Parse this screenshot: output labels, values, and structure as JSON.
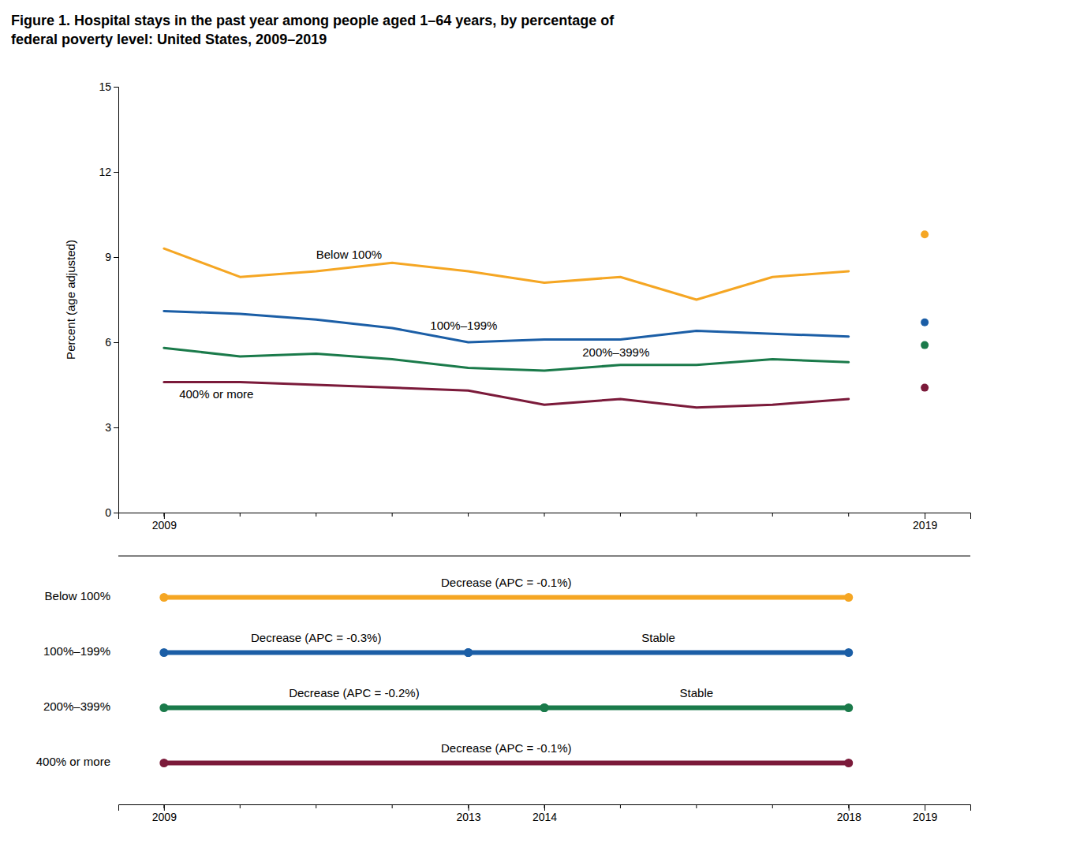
{
  "chart_data": [
    {
      "type": "line",
      "title": "Figure 1. Hospital stays in the past year among people aged 1–64 years, by percentage of",
      "subtitle": "federal poverty level: United States, 2009–2019",
      "ylabel": "Percent (age adjusted)",
      "x": [
        2009,
        2010,
        2011,
        2012,
        2013,
        2014,
        2015,
        2016,
        2017,
        2018
      ],
      "series": [
        {
          "name": "Below 100%",
          "type": "line",
          "color": "#F5A623",
          "values": [
            9.3,
            8.3,
            8.5,
            8.8,
            8.5,
            8.1,
            8.3,
            7.5,
            8.3,
            8.5
          ]
        },
        {
          "name": "100%–199%",
          "type": "line",
          "color": "#1B5EA6",
          "values": [
            7.1,
            7.0,
            6.8,
            6.5,
            6.0,
            6.1,
            6.1,
            6.4,
            6.3,
            6.2
          ]
        },
        {
          "name": "200%–399%",
          "type": "line",
          "color": "#1A7A4A",
          "values": [
            5.8,
            5.5,
            5.6,
            5.4,
            5.1,
            5.0,
            5.2,
            5.2,
            5.4,
            5.3
          ]
        },
        {
          "name": "400% or more",
          "type": "line",
          "color": "#7B1A3A",
          "values": [
            4.6,
            4.6,
            4.5,
            4.4,
            4.3,
            3.8,
            4.0,
            3.7,
            3.8,
            4.0
          ]
        },
        {
          "name": "Below 100%",
          "type": "scatter",
          "color": "#F5A623",
          "x": [
            2019
          ],
          "values": [
            9.8
          ]
        },
        {
          "name": "100%–199%",
          "type": "scatter",
          "color": "#1B5EA6",
          "x": [
            2019
          ],
          "values": [
            6.7
          ]
        },
        {
          "name": "200%–399%",
          "type": "scatter",
          "color": "#1A7A4A",
          "x": [
            2019
          ],
          "values": [
            5.9
          ]
        },
        {
          "name": "400% or more",
          "type": "scatter",
          "color": "#7B1A3A",
          "x": [
            2019
          ],
          "values": [
            4.4
          ]
        }
      ],
      "annotations": [
        {
          "text": "Below 100%",
          "x": 2011.0,
          "y": 9.05
        },
        {
          "text": "100%–199%",
          "x": 2012.5,
          "y": 6.55
        },
        {
          "text": "200%–399%",
          "x": 2014.5,
          "y": 5.62
        },
        {
          "text": "400% or more",
          "x": 2009.2,
          "y": 4.15
        }
      ],
      "xlim": [
        2008.4,
        2019.6
      ],
      "xticks": [
        2009,
        2019
      ],
      "minor_xticks": [
        2009,
        2010,
        2011,
        2012,
        2013,
        2014,
        2015,
        2016,
        2017,
        2018
      ],
      "ylim": [
        0,
        15
      ],
      "yticks": [
        0,
        3,
        6,
        9,
        12,
        15
      ]
    },
    {
      "type": "timeline",
      "series": [
        {
          "name": "Below 100%",
          "color": "#F5A623",
          "segments": [
            {
              "start": 2009,
              "end": 2018,
              "label": "Decrease (APC = -0.1%)"
            }
          ]
        },
        {
          "name": "100%–199%",
          "color": "#1B5EA6",
          "segments": [
            {
              "start": 2009,
              "end": 2013,
              "label": "Decrease (APC = -0.3%)"
            },
            {
              "start": 2013,
              "end": 2018,
              "label": "Stable"
            }
          ]
        },
        {
          "name": "200%–399%",
          "color": "#1A7A4A",
          "segments": [
            {
              "start": 2009,
              "end": 2014,
              "label": "Decrease (APC = -0.2%)"
            },
            {
              "start": 2014,
              "end": 2018,
              "label": "Stable"
            }
          ]
        },
        {
          "name": "400% or more",
          "color": "#7B1A3A",
          "segments": [
            {
              "start": 2009,
              "end": 2018,
              "label": "Decrease (APC = -0.1%)"
            }
          ]
        }
      ],
      "xlim": [
        2008.4,
        2019.6
      ],
      "xticks": [
        2009,
        2013,
        2014,
        2018,
        2019
      ],
      "minor_xticks": [
        2009,
        2010,
        2011,
        2012,
        2013,
        2014,
        2015,
        2016,
        2017,
        2018
      ]
    }
  ]
}
